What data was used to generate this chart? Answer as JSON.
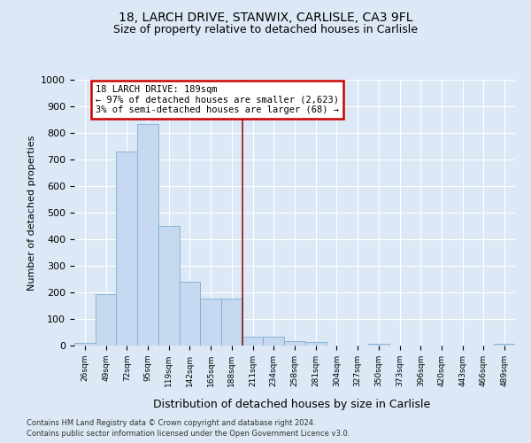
{
  "title1": "18, LARCH DRIVE, STANWIX, CARLISLE, CA3 9FL",
  "title2": "Size of property relative to detached houses in Carlisle",
  "xlabel": "Distribution of detached houses by size in Carlisle",
  "ylabel": "Number of detached properties",
  "categories": [
    "26sqm",
    "49sqm",
    "72sqm",
    "95sqm",
    "119sqm",
    "142sqm",
    "165sqm",
    "188sqm",
    "211sqm",
    "234sqm",
    "258sqm",
    "281sqm",
    "304sqm",
    "327sqm",
    "350sqm",
    "373sqm",
    "396sqm",
    "420sqm",
    "443sqm",
    "466sqm",
    "489sqm"
  ],
  "values": [
    10,
    193,
    730,
    835,
    450,
    240,
    178,
    178,
    32,
    32,
    18,
    12,
    0,
    0,
    8,
    0,
    0,
    0,
    0,
    0,
    8
  ],
  "bar_color": "#c5d8ef",
  "bar_edge_color": "#7aafd4",
  "vline_x_index": 7,
  "annotation_title": "18 LARCH DRIVE: 189sqm",
  "annotation_line1": "← 97% of detached houses are smaller (2,623)",
  "annotation_line2": "3% of semi-detached houses are larger (68) →",
  "vline_color": "#8b1a1a",
  "annotation_box_edgecolor": "#cc0000",
  "footer1": "Contains HM Land Registry data © Crown copyright and database right 2024.",
  "footer2": "Contains public sector information licensed under the Open Government Licence v3.0.",
  "ylim": [
    0,
    1000
  ],
  "yticks": [
    0,
    100,
    200,
    300,
    400,
    500,
    600,
    700,
    800,
    900,
    1000
  ],
  "background_color": "#dce8f5",
  "plot_bg_color": "#dce8f5",
  "title1_fontsize": 10,
  "title2_fontsize": 9,
  "grid_color": "#ffffff",
  "ylabel_fontsize": 8,
  "xlabel_fontsize": 9
}
